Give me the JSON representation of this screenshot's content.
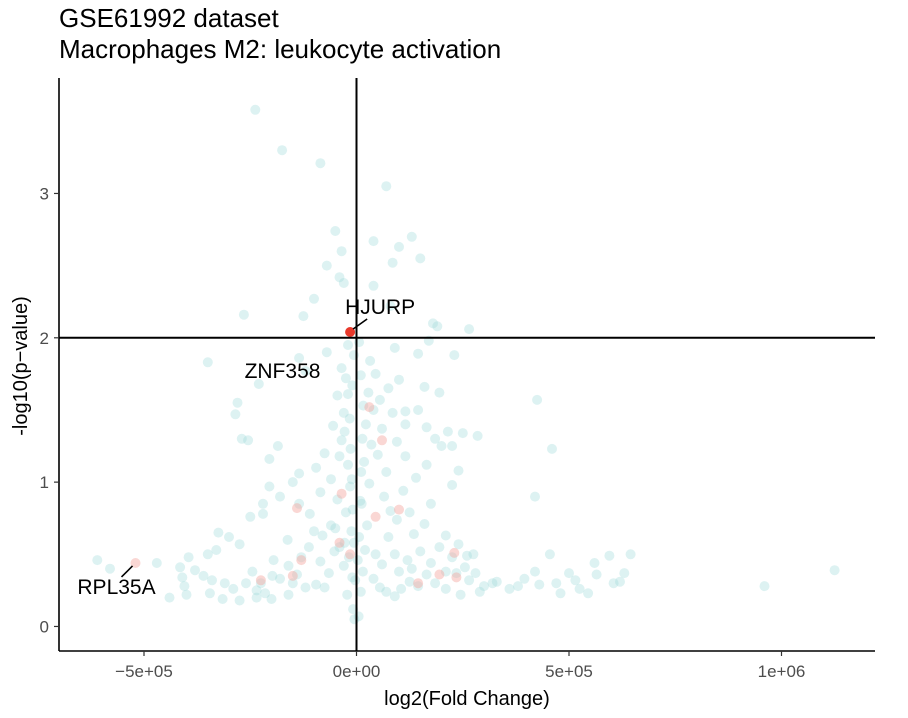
{
  "chart_data": {
    "type": "scatter",
    "title": "GSE61992 dataset",
    "subtitle": "Macrophages M2: leukocyte activation",
    "xlabel": "log2(Fold Change)",
    "ylabel": "-log10(p−value)",
    "xlim": [
      -700000,
      1220000
    ],
    "ylim": [
      -0.17,
      3.8
    ],
    "x_ticks": [
      -500000,
      0,
      500000,
      1000000
    ],
    "x_tick_labels": [
      "−5e+05",
      "0e+00",
      "5e+05",
      "1e+06"
    ],
    "y_ticks": [
      0,
      1,
      2,
      3
    ],
    "y_tick_labels": [
      "0",
      "1",
      "2",
      "3"
    ],
    "grid": false,
    "reference_lines": {
      "x": 0,
      "y": 2
    },
    "colors": {
      "background": "#9fdbdb",
      "highlight": "#f4a6a0",
      "significant": "#e8392b",
      "axis": "#000000",
      "tick_text": "#4d4d4d"
    },
    "series": [
      {
        "role": "background",
        "color": "#9fdbdb",
        "opacity": 0.35,
        "points": [
          [
            -238000,
            3.58
          ],
          [
            -175000,
            3.3
          ],
          [
            -85000,
            3.21
          ],
          [
            70000,
            3.05
          ],
          [
            -50000,
            2.74
          ],
          [
            -35000,
            2.6
          ],
          [
            -40000,
            2.42
          ],
          [
            40000,
            2.67
          ],
          [
            130000,
            2.7
          ],
          [
            100000,
            2.63
          ],
          [
            150000,
            2.55
          ],
          [
            85000,
            2.52
          ],
          [
            -70000,
            2.5
          ],
          [
            -30000,
            2.38
          ],
          [
            40000,
            2.36
          ],
          [
            -100000,
            2.27
          ],
          [
            -125000,
            2.15
          ],
          [
            -265000,
            2.16
          ],
          [
            80000,
            2.22
          ],
          [
            190000,
            2.08
          ],
          [
            180000,
            2.1
          ],
          [
            -350000,
            1.83
          ],
          [
            -20000,
            1.95
          ],
          [
            -135000,
            1.86
          ],
          [
            -70000,
            1.9
          ],
          [
            90000,
            1.93
          ],
          [
            145000,
            1.89
          ],
          [
            170000,
            1.98
          ],
          [
            230000,
            1.88
          ],
          [
            265000,
            2.06
          ],
          [
            -120000,
            1.77
          ],
          [
            -230000,
            1.68
          ],
          [
            -280000,
            1.55
          ],
          [
            -285000,
            1.47
          ],
          [
            100000,
            1.71
          ],
          [
            160000,
            1.66
          ],
          [
            195000,
            1.62
          ],
          [
            145000,
            1.5
          ],
          [
            115000,
            1.49
          ],
          [
            115000,
            1.4
          ],
          [
            165000,
            1.38
          ],
          [
            185000,
            1.3
          ],
          [
            200000,
            1.25
          ],
          [
            225000,
            1.25
          ],
          [
            215000,
            1.35
          ],
          [
            250000,
            1.34
          ],
          [
            285000,
            1.32
          ],
          [
            425000,
            1.57
          ],
          [
            460000,
            1.23
          ],
          [
            -255000,
            1.29
          ],
          [
            -185000,
            1.25
          ],
          [
            -205000,
            1.16
          ],
          [
            -270000,
            1.3
          ],
          [
            -135000,
            1.06
          ],
          [
            -205000,
            0.97
          ],
          [
            -150000,
            1.0
          ],
          [
            -95000,
            1.1
          ],
          [
            -180000,
            0.9
          ],
          [
            -220000,
            0.85
          ],
          [
            -250000,
            0.76
          ],
          [
            -220000,
            0.78
          ],
          [
            -135000,
            0.85
          ],
          [
            -110000,
            0.78
          ],
          [
            -300000,
            0.62
          ],
          [
            -325000,
            0.65
          ],
          [
            -275000,
            0.57
          ],
          [
            -330000,
            0.53
          ],
          [
            -350000,
            0.5
          ],
          [
            -380000,
            0.39
          ],
          [
            -395000,
            0.48
          ],
          [
            -410000,
            0.34
          ],
          [
            -360000,
            0.35
          ],
          [
            -340000,
            0.32
          ],
          [
            -310000,
            0.3
          ],
          [
            -290000,
            0.26
          ],
          [
            -610000,
            0.46
          ],
          [
            -580000,
            0.4
          ],
          [
            -470000,
            0.44
          ],
          [
            -415000,
            0.41
          ],
          [
            -440000,
            0.2
          ],
          [
            -400000,
            0.22
          ],
          [
            -345000,
            0.23
          ],
          [
            -405000,
            0.28
          ],
          [
            -315000,
            0.19
          ],
          [
            -275000,
            0.18
          ],
          [
            -235000,
            0.2
          ],
          [
            -260000,
            0.3
          ],
          [
            -235000,
            0.25
          ],
          [
            -215000,
            0.23
          ],
          [
            -200000,
            0.19
          ],
          [
            -245000,
            0.38
          ],
          [
            -225000,
            0.3
          ],
          [
            -198000,
            0.35
          ],
          [
            -180000,
            0.33
          ],
          [
            -195000,
            0.46
          ],
          [
            -160000,
            0.42
          ],
          [
            -150000,
            0.3
          ],
          [
            -160000,
            0.22
          ],
          [
            -120000,
            0.27
          ],
          [
            -140000,
            0.36
          ],
          [
            -130000,
            0.48
          ],
          [
            -112000,
            0.55
          ],
          [
            -162000,
            0.6
          ],
          [
            -100000,
            0.66
          ],
          [
            -80000,
            0.63
          ],
          [
            -60000,
            0.7
          ],
          [
            -85000,
            0.45
          ],
          [
            -65000,
            0.37
          ],
          [
            -95000,
            0.29
          ],
          [
            -75000,
            0.27
          ],
          [
            -52000,
            0.52
          ],
          [
            -45000,
            0.88
          ],
          [
            -85000,
            0.93
          ],
          [
            -60000,
            1.02
          ],
          [
            -40000,
            1.18
          ],
          [
            -75000,
            1.2
          ],
          [
            -35000,
            1.29
          ],
          [
            -55000,
            1.39
          ],
          [
            -30000,
            1.48
          ],
          [
            -45000,
            1.6
          ],
          [
            -25000,
            1.72
          ],
          [
            -35000,
            1.79
          ],
          [
            -20000,
            1.61
          ],
          [
            -28000,
            1.35
          ],
          [
            -20000,
            1.12
          ],
          [
            -15000,
            0.97
          ],
          [
            -25000,
            0.79
          ],
          [
            -12000,
            0.66
          ],
          [
            -18000,
            0.48
          ],
          [
            -10000,
            0.34
          ],
          [
            -22000,
            0.22
          ],
          [
            -8000,
            0.12
          ],
          [
            -30000,
            0.42
          ],
          [
            -40000,
            0.55
          ],
          [
            -50000,
            0.68
          ],
          [
            -28000,
            0.58
          ],
          [
            -5000,
            0.05
          ],
          [
            5000,
            0.07
          ],
          [
            10000,
            0.24
          ],
          [
            15000,
            0.38
          ],
          [
            20000,
            0.53
          ],
          [
            25000,
            0.7
          ],
          [
            12000,
            0.85
          ],
          [
            30000,
            0.99
          ],
          [
            18000,
            1.14
          ],
          [
            35000,
            1.26
          ],
          [
            22000,
            1.4
          ],
          [
            40000,
            1.5
          ],
          [
            28000,
            1.62
          ],
          [
            45000,
            1.75
          ],
          [
            32000,
            1.84
          ],
          [
            55000,
            1.57
          ],
          [
            60000,
            1.37
          ],
          [
            50000,
            1.19
          ],
          [
            70000,
            1.07
          ],
          [
            65000,
            0.9
          ],
          [
            80000,
            0.8
          ],
          [
            75000,
            0.62
          ],
          [
            95000,
            0.74
          ],
          [
            90000,
            0.5
          ],
          [
            110000,
            0.94
          ],
          [
            125000,
            0.79
          ],
          [
            135000,
            0.64
          ],
          [
            120000,
            0.46
          ],
          [
            150000,
            0.52
          ],
          [
            160000,
            0.71
          ],
          [
            175000,
            0.85
          ],
          [
            195000,
            0.55
          ],
          [
            210000,
            0.63
          ],
          [
            225000,
            0.48
          ],
          [
            240000,
            0.57
          ],
          [
            255000,
            0.41
          ],
          [
            265000,
            0.32
          ],
          [
            280000,
            0.37
          ],
          [
            300000,
            0.28
          ],
          [
            320000,
            0.3
          ],
          [
            330000,
            0.31
          ],
          [
            290000,
            0.24
          ],
          [
            245000,
            0.22
          ],
          [
            210000,
            0.26
          ],
          [
            185000,
            0.3
          ],
          [
            165000,
            0.36
          ],
          [
            145000,
            0.28
          ],
          [
            125000,
            0.31
          ],
          [
            105000,
            0.26
          ],
          [
            90000,
            0.21
          ],
          [
            70000,
            0.24
          ],
          [
            55000,
            0.27
          ],
          [
            40000,
            0.33
          ],
          [
            60000,
            0.43
          ],
          [
            45000,
            0.5
          ],
          [
            100000,
            0.38
          ],
          [
            130000,
            0.4
          ],
          [
            175000,
            0.44
          ],
          [
            210000,
            0.38
          ],
          [
            235000,
            0.37
          ],
          [
            260000,
            0.49
          ],
          [
            275000,
            0.5
          ],
          [
            225000,
            0.98
          ],
          [
            240000,
            1.08
          ],
          [
            165000,
            1.12
          ],
          [
            140000,
            1.03
          ],
          [
            115000,
            1.18
          ],
          [
            95000,
            1.28
          ],
          [
            85000,
            1.48
          ],
          [
            75000,
            1.65
          ],
          [
            455000,
            0.5
          ],
          [
            420000,
            0.38
          ],
          [
            470000,
            0.3
          ],
          [
            500000,
            0.37
          ],
          [
            515000,
            0.32
          ],
          [
            560000,
            0.44
          ],
          [
            565000,
            0.36
          ],
          [
            595000,
            0.49
          ],
          [
            605000,
            0.3
          ],
          [
            630000,
            0.37
          ],
          [
            645000,
            0.5
          ],
          [
            525000,
            0.26
          ],
          [
            480000,
            0.23
          ],
          [
            430000,
            0.29
          ],
          [
            545000,
            0.23
          ],
          [
            620000,
            0.31
          ],
          [
            960000,
            0.28
          ],
          [
            1125000,
            0.39
          ],
          [
            420000,
            0.9
          ],
          [
            380000,
            0.28
          ],
          [
            395000,
            0.33
          ],
          [
            360000,
            0.26
          ],
          [
            -3000,
            0.32
          ],
          [
            3000,
            0.46
          ],
          [
            -6000,
            0.58
          ],
          [
            6000,
            0.62
          ],
          [
            -9000,
            0.81
          ],
          [
            9000,
            0.87
          ],
          [
            -11000,
            1.02
          ],
          [
            11000,
            1.07
          ],
          [
            -14000,
            1.23
          ],
          [
            14000,
            1.3
          ],
          [
            -16000,
            1.44
          ],
          [
            16000,
            1.53
          ],
          [
            -10000,
            1.67
          ],
          [
            10000,
            1.74
          ],
          [
            -6000,
            1.88
          ],
          [
            6000,
            1.97
          ]
        ]
      },
      {
        "role": "highlight",
        "color": "#f4a6a0",
        "opacity": 0.45,
        "points": [
          [
            -520000,
            0.44
          ],
          [
            -225000,
            0.32
          ],
          [
            -150000,
            0.35
          ],
          [
            -130000,
            0.46
          ],
          [
            -140000,
            0.82
          ],
          [
            -35000,
            0.92
          ],
          [
            -40000,
            0.58
          ],
          [
            -15000,
            0.5
          ],
          [
            30000,
            1.52
          ],
          [
            60000,
            1.29
          ],
          [
            45000,
            0.76
          ],
          [
            100000,
            0.81
          ],
          [
            230000,
            0.51
          ],
          [
            195000,
            0.36
          ],
          [
            145000,
            0.3
          ],
          [
            235000,
            0.34
          ]
        ]
      },
      {
        "role": "significant",
        "color": "#e8392b",
        "opacity": 1,
        "points": [
          [
            -15000,
            2.04
          ]
        ]
      }
    ],
    "annotations": [
      {
        "label": "HJURP",
        "x": -15000,
        "y": 2.04
      },
      {
        "label": "ZNF358",
        "x": -80000,
        "y": 1.95
      },
      {
        "label": "RPL35A",
        "x": -520000,
        "y": 0.44
      }
    ]
  }
}
